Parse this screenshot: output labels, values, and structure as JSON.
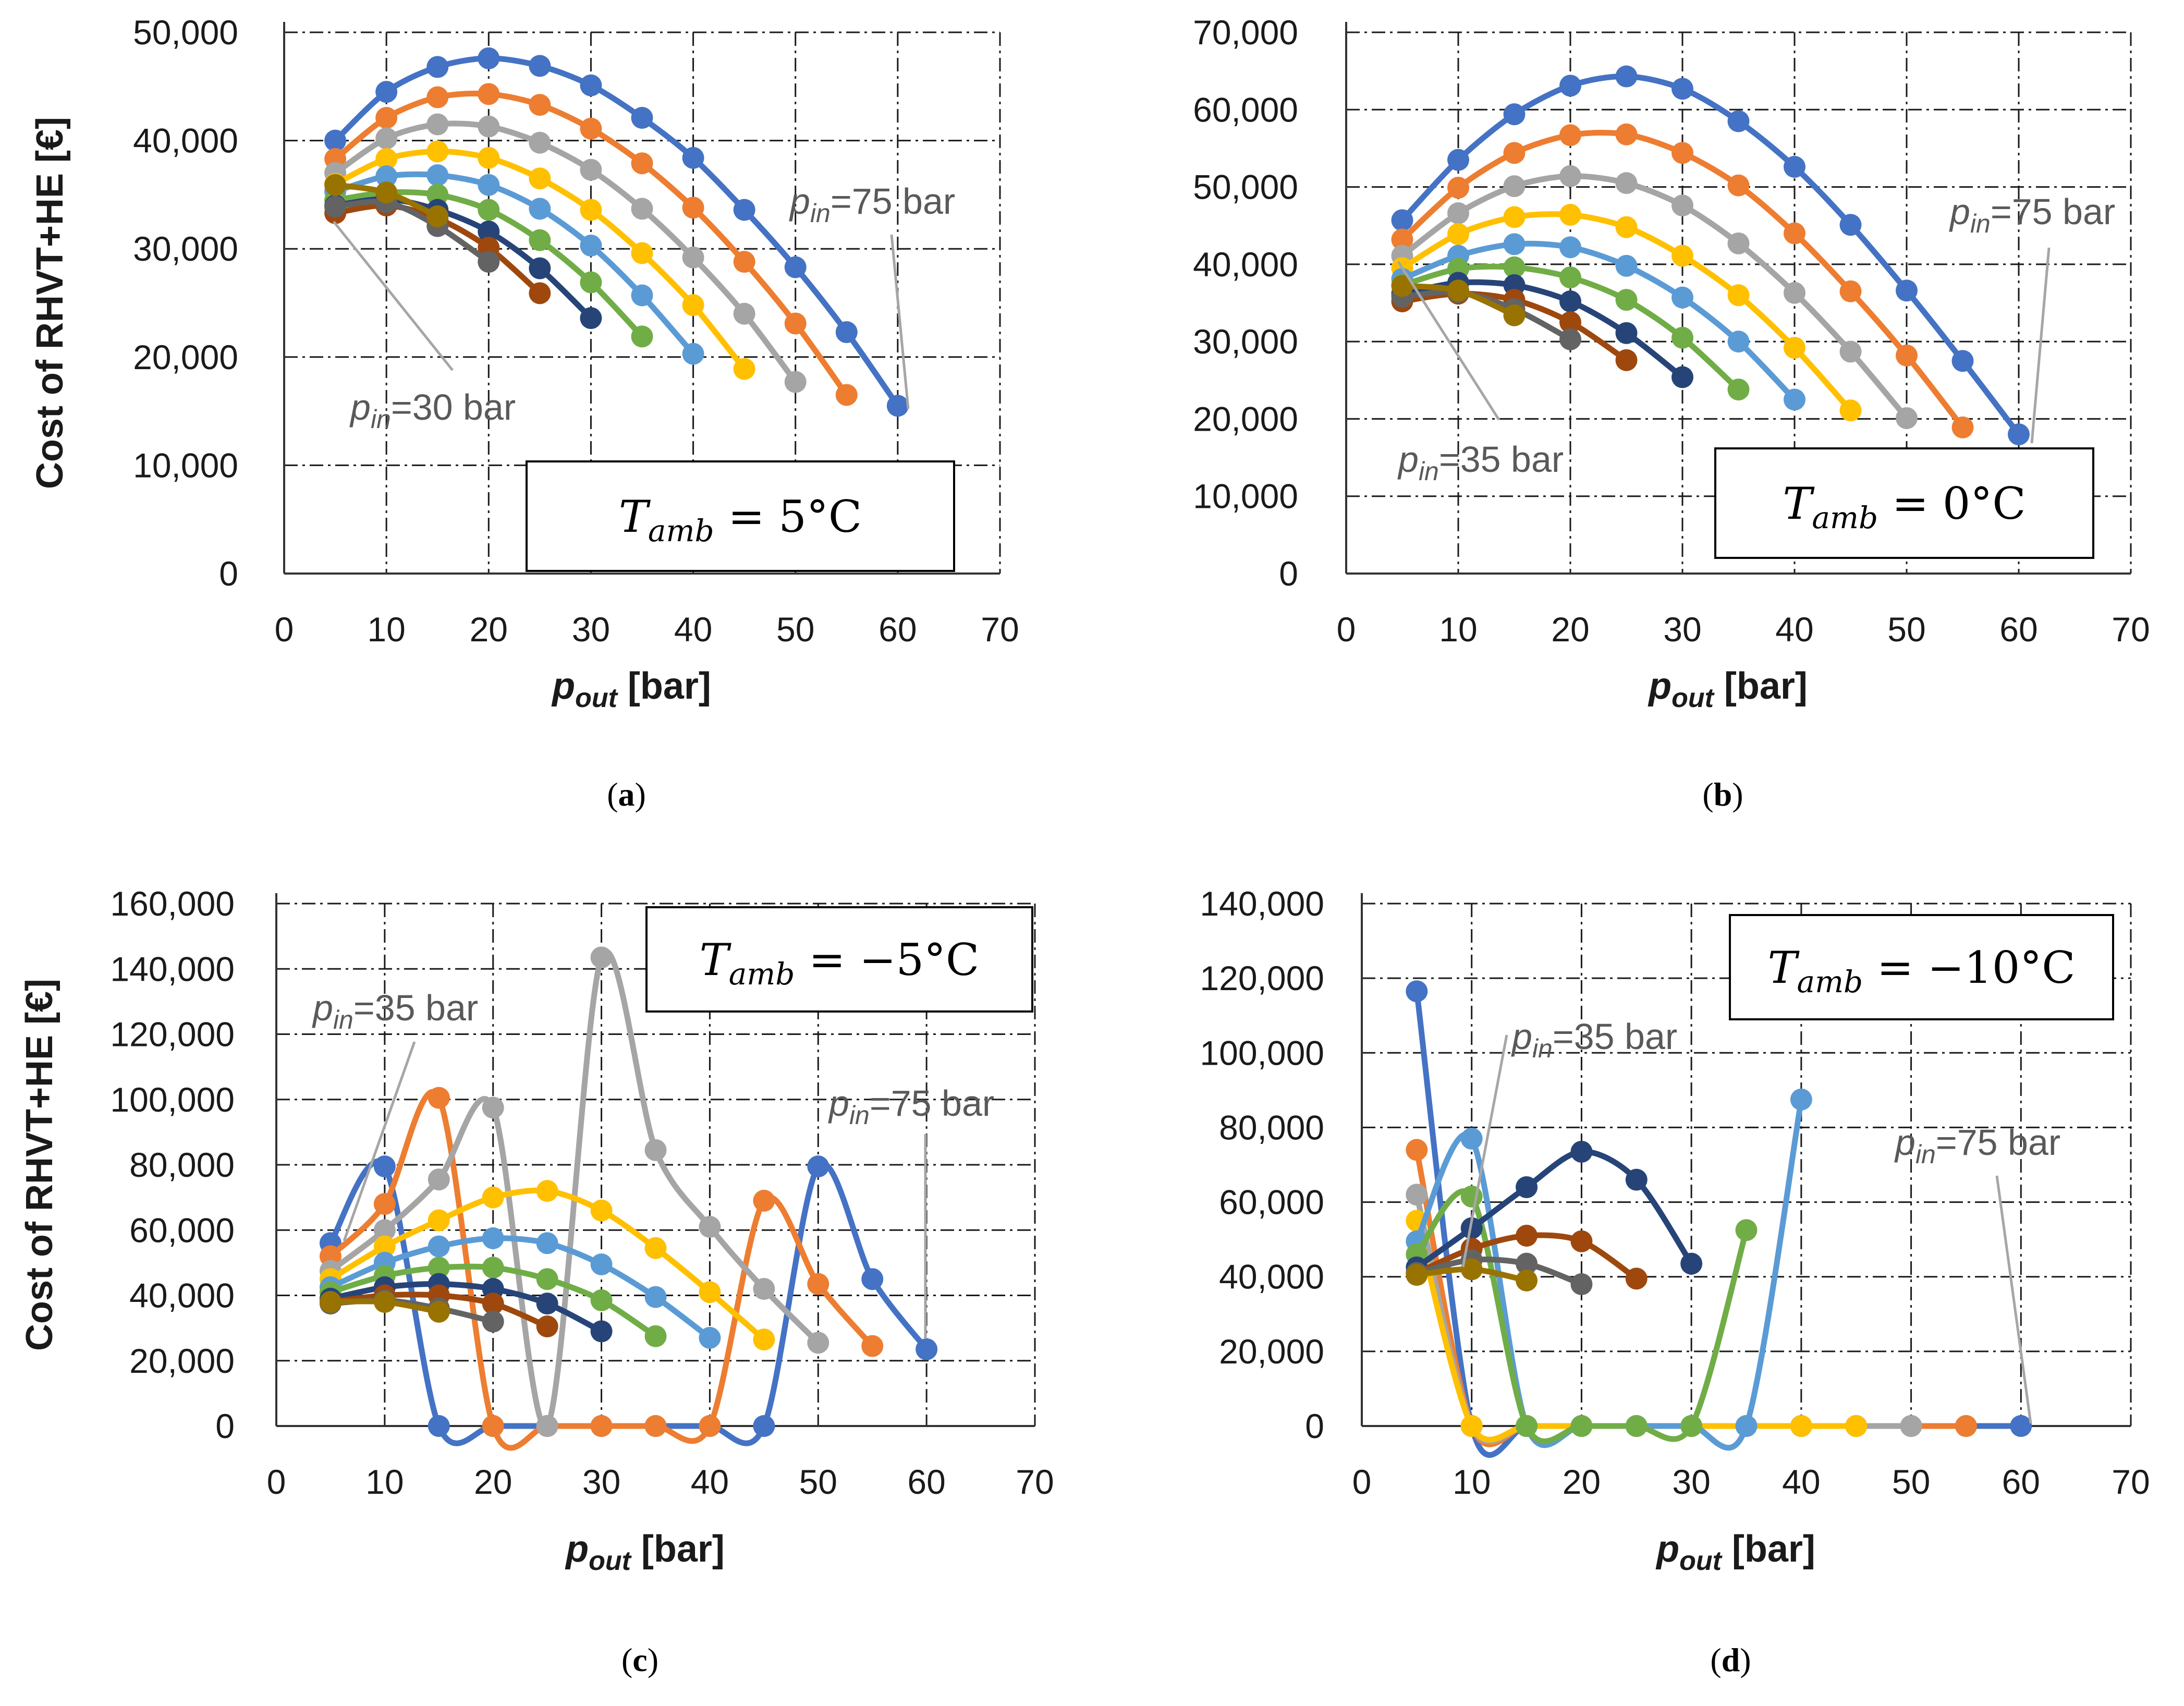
{
  "colors": [
    "#4472C4",
    "#ED7D31",
    "#A5A5A5",
    "#FFC000",
    "#5B9BD5",
    "#70AD47",
    "#264478",
    "#9E480E",
    "#636363",
    "#997300"
  ],
  "chart_data": [
    {
      "type": "line",
      "panel": "(a)",
      "caption_letter": "a",
      "ylabel": "Cost of RHVT+HE [€]",
      "xlabel_main": "p",
      "xlabel_sub": "out",
      "xlabel_unit": " [bar]",
      "xlim": [
        0,
        70
      ],
      "ylim": [
        0,
        50000
      ],
      "xticks": [
        "0",
        "10",
        "20",
        "30",
        "40",
        "50",
        "60",
        "70"
      ],
      "yticks": [
        "0",
        "10,000",
        "20,000",
        "30,000",
        "40,000",
        "50,000"
      ],
      "grid": true,
      "tamb_label": "T",
      "tamb_sub": "amb",
      "tamb_value": " = 5°C",
      "annotations": [
        {
          "main": "p",
          "sub": "in",
          "rest": "=75 bar"
        },
        {
          "main": "p",
          "sub": "in",
          "rest": "=30 bar"
        }
      ],
      "series": [
        {
          "x": [
            5,
            10,
            15,
            20,
            25,
            30,
            35,
            40,
            45,
            50,
            55,
            60
          ],
          "values": [
            40000,
            44500,
            46800,
            47600,
            46900,
            45100,
            42100,
            38400,
            33600,
            28300,
            22300,
            15500
          ]
        },
        {
          "x": [
            5,
            10,
            15,
            20,
            25,
            30,
            35,
            40,
            45,
            50,
            55
          ],
          "values": [
            38300,
            42100,
            44000,
            44300,
            43300,
            41100,
            37900,
            33800,
            28800,
            23100,
            16500
          ]
        },
        {
          "x": [
            5,
            10,
            15,
            20,
            25,
            30,
            35,
            40,
            45,
            50
          ],
          "values": [
            37000,
            40200,
            41500,
            41300,
            39800,
            37300,
            33700,
            29200,
            24000,
            17700
          ]
        },
        {
          "x": [
            5,
            10,
            15,
            20,
            25,
            30,
            35,
            40,
            45
          ],
          "values": [
            36000,
            38300,
            39000,
            38400,
            36500,
            33600,
            29600,
            24800,
            18900
          ]
        },
        {
          "x": [
            5,
            10,
            15,
            20,
            25,
            30,
            35,
            40
          ],
          "values": [
            35300,
            36700,
            36800,
            35900,
            33700,
            30300,
            25700,
            20300
          ]
        },
        {
          "x": [
            5,
            10,
            15,
            20,
            25,
            30,
            35
          ],
          "values": [
            34500,
            35200,
            35000,
            33600,
            30800,
            26900,
            21900
          ]
        },
        {
          "x": [
            5,
            10,
            15,
            20,
            25,
            30
          ],
          "values": [
            34000,
            34600,
            33600,
            31600,
            28200,
            23600
          ]
        },
        {
          "x": [
            5,
            10,
            15,
            20,
            25
          ],
          "values": [
            33300,
            34000,
            32800,
            30100,
            25900
          ]
        },
        {
          "x": [
            5,
            10,
            15,
            20
          ],
          "values": [
            33900,
            34300,
            32100,
            28800
          ]
        },
        {
          "x": [
            5,
            10,
            15
          ],
          "values": [
            35900,
            35200,
            33000
          ]
        }
      ]
    },
    {
      "type": "line",
      "panel": "(b)",
      "caption_letter": "b",
      "ylabel": "",
      "xlabel_main": "p",
      "xlabel_sub": "out",
      "xlabel_unit": " [bar]",
      "xlim": [
        0,
        70
      ],
      "ylim": [
        0,
        70000
      ],
      "xticks": [
        "0",
        "10",
        "20",
        "30",
        "40",
        "50",
        "60",
        "70"
      ],
      "yticks": [
        "0",
        "10,000",
        "20,000",
        "30,000",
        "40,000",
        "50,000",
        "60,000",
        "70,000"
      ],
      "grid": true,
      "tamb_label": "T",
      "tamb_sub": "amb",
      "tamb_value": " = 0°C",
      "annotations": [
        {
          "main": "p",
          "sub": "in",
          "rest": "=75 bar"
        },
        {
          "main": "p",
          "sub": "in",
          "rest": "=35 bar"
        }
      ],
      "series": [
        {
          "x": [
            5,
            10,
            15,
            20,
            25,
            30,
            35,
            40,
            45,
            50,
            55,
            60
          ],
          "values": [
            45700,
            53500,
            59400,
            63100,
            64300,
            62700,
            58500,
            52600,
            45100,
            36600,
            27500,
            18000
          ]
        },
        {
          "x": [
            5,
            10,
            15,
            20,
            25,
            30,
            35,
            40,
            45,
            50,
            55
          ],
          "values": [
            43200,
            49900,
            54400,
            56700,
            56800,
            54400,
            50200,
            44000,
            36500,
            28200,
            18900
          ]
        },
        {
          "x": [
            5,
            10,
            15,
            20,
            25,
            30,
            35,
            40,
            45,
            50
          ],
          "values": [
            41100,
            46600,
            50100,
            51400,
            50500,
            47600,
            42700,
            36300,
            28700,
            20100
          ]
        },
        {
          "x": [
            5,
            10,
            15,
            20,
            25,
            30,
            35,
            40,
            45
          ],
          "values": [
            39500,
            43900,
            46100,
            46400,
            44800,
            41100,
            36000,
            29200,
            21100
          ]
        },
        {
          "x": [
            5,
            10,
            15,
            20,
            25,
            30,
            35,
            40
          ],
          "values": [
            38100,
            41100,
            42600,
            42200,
            39800,
            35700,
            30000,
            22500
          ]
        },
        {
          "x": [
            5,
            10,
            15,
            20,
            25,
            30,
            35
          ],
          "values": [
            37300,
            39400,
            39600,
            38300,
            35400,
            30500,
            23800
          ]
        },
        {
          "x": [
            5,
            10,
            15,
            20,
            25,
            30
          ],
          "values": [
            36200,
            37600,
            37300,
            35200,
            31100,
            25400
          ]
        },
        {
          "x": [
            5,
            10,
            15,
            20,
            25
          ],
          "values": [
            35200,
            36200,
            35400,
            32500,
            27600
          ]
        },
        {
          "x": [
            5,
            10,
            15,
            20
          ],
          "values": [
            35800,
            36400,
            34200,
            30300
          ]
        },
        {
          "x": [
            5,
            10,
            15
          ],
          "values": [
            37200,
            36600,
            33400
          ]
        }
      ]
    },
    {
      "type": "line",
      "panel": "(c)",
      "caption_letter": "c",
      "ylabel": "Cost of RHVT+HE [€]",
      "xlabel_main": "p",
      "xlabel_sub": "out",
      "xlabel_unit": " [bar]",
      "xlim": [
        0,
        70
      ],
      "ylim": [
        0,
        160000
      ],
      "xticks": [
        "0",
        "10",
        "20",
        "30",
        "40",
        "50",
        "60",
        "70"
      ],
      "yticks": [
        "0",
        "20,000",
        "40,000",
        "60,000",
        "80,000",
        "100,000",
        "120,000",
        "140,000",
        "160,000"
      ],
      "grid": true,
      "tamb_label": "T",
      "tamb_sub": "amb",
      "tamb_value": " = −5°C",
      "annotations": [
        {
          "main": "p",
          "sub": "in",
          "rest": "=35 bar"
        },
        {
          "main": "p",
          "sub": "in",
          "rest": "=75 bar"
        }
      ],
      "series": [
        {
          "x": [
            5,
            10,
            15,
            20,
            25,
            30,
            35,
            40,
            45,
            50,
            55,
            60
          ],
          "values": [
            56000,
            79500,
            0,
            0,
            0,
            0,
            0,
            0,
            0,
            79500,
            45000,
            23500
          ]
        },
        {
          "x": [
            5,
            10,
            15,
            20,
            25,
            30,
            35,
            40,
            45,
            50,
            55
          ],
          "values": [
            52000,
            68000,
            100500,
            0,
            0,
            0,
            0,
            0,
            69000,
            43500,
            24500
          ]
        },
        {
          "x": [
            5,
            10,
            15,
            20,
            25,
            30,
            35,
            40,
            45,
            50
          ],
          "values": [
            47500,
            60000,
            75500,
            97500,
            0,
            143500,
            84500,
            61000,
            42000,
            25500
          ]
        },
        {
          "x": [
            5,
            10,
            15,
            20,
            25,
            30,
            35,
            40,
            45
          ],
          "values": [
            45000,
            55000,
            63000,
            70000,
            72000,
            66000,
            54500,
            41000,
            26500
          ]
        },
        {
          "x": [
            5,
            10,
            15,
            20,
            25,
            30,
            35,
            40
          ],
          "values": [
            42500,
            50000,
            55000,
            57500,
            56000,
            49500,
            39500,
            27000
          ]
        },
        {
          "x": [
            5,
            10,
            15,
            20,
            25,
            30,
            35
          ],
          "values": [
            41000,
            46000,
            48500,
            48500,
            45000,
            38500,
            27500
          ]
        },
        {
          "x": [
            5,
            10,
            15,
            20,
            25,
            30
          ],
          "values": [
            39000,
            42500,
            43500,
            42000,
            37500,
            29000
          ]
        },
        {
          "x": [
            5,
            10,
            15,
            20,
            25
          ],
          "values": [
            38000,
            40000,
            40000,
            37500,
            30500
          ]
        },
        {
          "x": [
            5,
            10,
            15,
            20
          ],
          "values": [
            37500,
            38500,
            36000,
            32000
          ]
        },
        {
          "x": [
            5,
            10,
            15
          ],
          "values": [
            38000,
            38000,
            35000
          ]
        }
      ]
    },
    {
      "type": "line",
      "panel": "(d)",
      "caption_letter": "d",
      "ylabel": "",
      "xlabel_main": "p",
      "xlabel_sub": "out",
      "xlabel_unit": " [bar]",
      "xlim": [
        0,
        70
      ],
      "ylim": [
        0,
        140000
      ],
      "xticks": [
        "0",
        "10",
        "20",
        "30",
        "40",
        "50",
        "60",
        "70"
      ],
      "yticks": [
        "0",
        "20,000",
        "40,000",
        "60,000",
        "80,000",
        "100,000",
        "120,000",
        "140,000"
      ],
      "grid": true,
      "tamb_label": "T",
      "tamb_sub": "amb",
      "tamb_value": " = −10°C",
      "annotations": [
        {
          "main": "p",
          "sub": "in",
          "rest": "=35 bar"
        },
        {
          "main": "p",
          "sub": "in",
          "rest": "=75 bar"
        }
      ],
      "series": [
        {
          "x": [
            5,
            10,
            15,
            20,
            25,
            30,
            35,
            40,
            45,
            50,
            55,
            60
          ],
          "values": [
            116500,
            0,
            0,
            0,
            0,
            0,
            0,
            0,
            0,
            0,
            0,
            0
          ]
        },
        {
          "x": [
            5,
            10,
            15,
            20,
            25,
            30,
            35,
            40,
            45,
            50,
            55
          ],
          "values": [
            74000,
            0,
            0,
            0,
            0,
            0,
            0,
            0,
            0,
            0,
            0
          ]
        },
        {
          "x": [
            5,
            10,
            15,
            20,
            25,
            30,
            35,
            40,
            45,
            50
          ],
          "values": [
            62000,
            0,
            0,
            0,
            0,
            0,
            0,
            0,
            0,
            0
          ]
        },
        {
          "x": [
            5,
            10,
            15,
            20,
            25,
            30,
            35,
            40,
            45
          ],
          "values": [
            55000,
            0,
            0,
            0,
            0,
            0,
            0,
            0,
            0
          ]
        },
        {
          "x": [
            5,
            10,
            15,
            20,
            25,
            30,
            35,
            40
          ],
          "values": [
            49500,
            77000,
            0,
            0,
            0,
            0,
            0,
            87500
          ]
        },
        {
          "x": [
            5,
            10,
            15,
            20,
            25,
            30,
            35
          ],
          "values": [
            46000,
            61500,
            0,
            0,
            0,
            0,
            52500
          ]
        },
        {
          "x": [
            5,
            10,
            15,
            20,
            25,
            30
          ],
          "values": [
            42500,
            53000,
            64000,
            73500,
            66000,
            43500
          ]
        },
        {
          "x": [
            5,
            10,
            15,
            20,
            25
          ],
          "values": [
            41000,
            47500,
            51000,
            49500,
            39500
          ]
        },
        {
          "x": [
            5,
            10,
            15,
            20
          ],
          "values": [
            41000,
            44500,
            43500,
            38000
          ]
        },
        {
          "x": [
            5,
            10,
            15
          ],
          "values": [
            40500,
            42000,
            39000
          ]
        }
      ]
    }
  ]
}
